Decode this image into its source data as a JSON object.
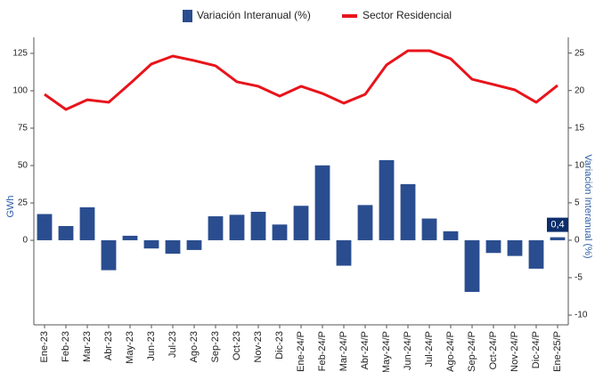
{
  "chart_data": {
    "type": "bar-line",
    "ylabel": "GWh",
    "y2label": "Variación Interanual (%)",
    "categories": [
      "Ene-23",
      "Feb-23",
      "Mar-23",
      "Abr-23",
      "May-23",
      "Jun-23",
      "Jul-23",
      "Ago-23",
      "Sep-23",
      "Oct-23",
      "Nov-23",
      "Dic-23",
      "Ene-24/P",
      "Feb-24/P",
      "Mar-24/P",
      "Abr-24/P",
      "May-24/P",
      "Jun-24/P",
      "Jul-24/P",
      "Ago-24/P",
      "Sep-24/P",
      "Oct-24/P",
      "Nov-24/P",
      "Dic-24/P",
      "Ene-25/P"
    ],
    "series": [
      {
        "name": "Variación Interanual (%)",
        "type": "bar",
        "axis": "y2",
        "color": "#2a4d8f",
        "values": [
          3.5,
          1.9,
          4.4,
          -4.0,
          0.6,
          -1.1,
          -1.8,
          -1.3,
          3.2,
          3.4,
          3.8,
          2.1,
          4.6,
          10.0,
          -3.4,
          4.7,
          10.7,
          7.5,
          2.9,
          1.2,
          -6.9,
          -1.7,
          -2.1,
          -3.8,
          0.4
        ],
        "value_labels": [
          null,
          null,
          null,
          null,
          null,
          null,
          null,
          null,
          null,
          null,
          null,
          null,
          null,
          null,
          null,
          null,
          null,
          null,
          null,
          null,
          null,
          null,
          null,
          null,
          "0,4"
        ]
      },
      {
        "name": "Sector Residencial",
        "type": "line",
        "color": "#e8141b",
        "values": [
          97.6,
          87.5,
          94,
          92.3,
          104.8,
          117.9,
          123.2,
          120.2,
          116.7,
          106,
          103,
          96.4,
          103,
          98.2,
          91.7,
          97.6,
          117.3,
          126.8,
          126.8,
          121.4,
          107.7,
          104.2,
          100.6,
          92.3,
          103.6
        ]
      }
    ],
    "ylim": [
      -56.5,
      135.7
    ],
    "yticks": [
      0,
      25,
      50,
      75,
      100,
      125
    ],
    "y2lim": [
      -11.3,
      27.1
    ],
    "y2ticks": [
      -10,
      -5,
      0,
      5,
      10,
      15,
      20,
      25
    ],
    "grid": false
  }
}
